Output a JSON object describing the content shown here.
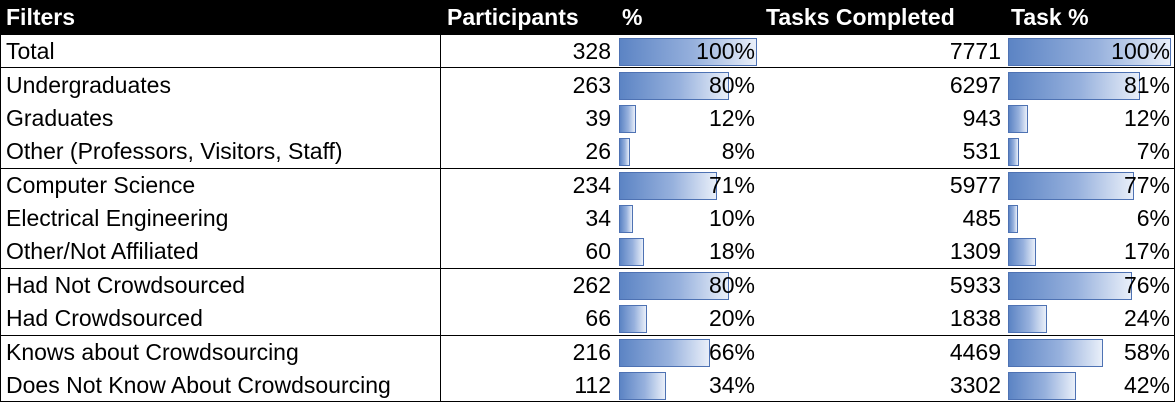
{
  "header": {
    "filters": "Filters",
    "participants": "Participants",
    "pct": "%",
    "tasks": "Tasks Completed",
    "task_pct": "Task %"
  },
  "colors": {
    "bar_dark": "#5c84c4",
    "bar_light": "#e9eff9",
    "bar_border": "#4e72b3"
  },
  "rows": [
    {
      "label": "Total",
      "participants": "328",
      "pct": "100%",
      "pct_value": 100,
      "tasks": "7771",
      "task_pct": "100%",
      "task_pct_value": 100
    },
    {
      "label": "Undergraduates",
      "participants": "263",
      "pct": "80%",
      "pct_value": 80,
      "tasks": "6297",
      "task_pct": "81%",
      "task_pct_value": 81
    },
    {
      "label": "Graduates",
      "participants": "39",
      "pct": "12%",
      "pct_value": 12,
      "tasks": "943",
      "task_pct": "12%",
      "task_pct_value": 12
    },
    {
      "label": "Other (Professors, Visitors, Staff)",
      "participants": "26",
      "pct": "8%",
      "pct_value": 8,
      "tasks": "531",
      "task_pct": "7%",
      "task_pct_value": 7
    },
    {
      "label": "Computer Science",
      "participants": "234",
      "pct": "71%",
      "pct_value": 71,
      "tasks": "5977",
      "task_pct": "77%",
      "task_pct_value": 77
    },
    {
      "label": "Electrical Engineering",
      "participants": "34",
      "pct": "10%",
      "pct_value": 10,
      "tasks": "485",
      "task_pct": "6%",
      "task_pct_value": 6
    },
    {
      "label": "Other/Not Affiliated",
      "participants": "60",
      "pct": "18%",
      "pct_value": 18,
      "tasks": "1309",
      "task_pct": "17%",
      "task_pct_value": 17
    },
    {
      "label": "Had Not Crowdsourced",
      "participants": "262",
      "pct": "80%",
      "pct_value": 80,
      "tasks": "5933",
      "task_pct": "76%",
      "task_pct_value": 76
    },
    {
      "label": "Had Crowdsourced",
      "participants": "66",
      "pct": "20%",
      "pct_value": 20,
      "tasks": "1838",
      "task_pct": "24%",
      "task_pct_value": 24
    },
    {
      "label": "Knows about Crowdsourcing",
      "participants": "216",
      "pct": "66%",
      "pct_value": 66,
      "tasks": "4469",
      "task_pct": "58%",
      "task_pct_value": 58
    },
    {
      "label": "Does Not Know About Crowdsourcing",
      "participants": "112",
      "pct": "34%",
      "pct_value": 34,
      "tasks": "3302",
      "task_pct": "42%",
      "task_pct_value": 42
    }
  ]
}
